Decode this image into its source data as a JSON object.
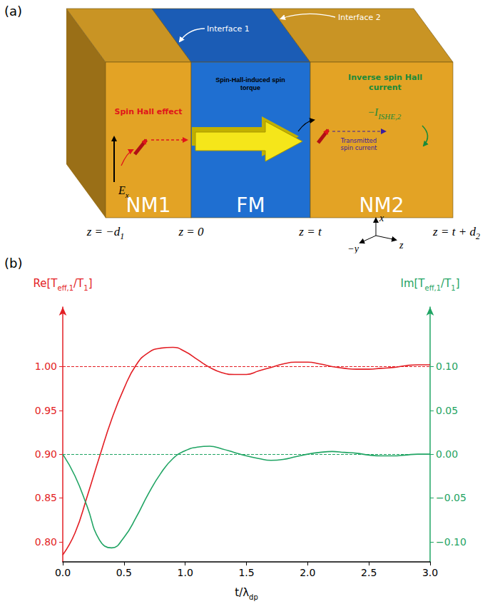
{
  "diagram": {
    "label": "(a)",
    "layers": [
      "NM1",
      "FM",
      "NM2"
    ],
    "interfaces": [
      "Interface 1",
      "Interface 2"
    ],
    "annotations": {
      "spin_hall": "Spin Hall effect",
      "field": [
        "E",
        {
          "sub": "x"
        }
      ],
      "torque": "Spin-Hall-induced spin torque",
      "ishe": "Inverse spin Hall current",
      "ishe_current": [
        "−I",
        {
          "sub": "ISHE,2"
        }
      ],
      "transmitted": "Transmitted spin current"
    },
    "positions": [
      [
        "z = −d",
        {
          "sub": "1"
        }
      ],
      "z = 0",
      "z = t",
      [
        "z = t + d",
        {
          "sub": "2"
        }
      ]
    ],
    "axes": [
      "x",
      "−y",
      "z"
    ]
  },
  "chart_data": {
    "type": "line",
    "panel_label": "(b)",
    "xlabel": [
      "t/λ",
      {
        "sub": "dp"
      }
    ],
    "ylabel": [
      "Re[T",
      {
        "sub": "eff,1"
      },
      "/T",
      {
        "sub": "1"
      },
      "]"
    ],
    "y2label": [
      "Im[T",
      {
        "sub": "eff,1"
      },
      "/T",
      {
        "sub": "1"
      },
      "]"
    ],
    "x": [
      0,
      0.1,
      0.2,
      0.3,
      0.4,
      0.5,
      0.6,
      0.7,
      0.8,
      0.9,
      1.0,
      1.1,
      1.2,
      1.3,
      1.4,
      1.5,
      1.6,
      1.7,
      1.8,
      1.9,
      2.0,
      2.1,
      2.2,
      2.3,
      2.4,
      2.5,
      2.6,
      2.7,
      2.8,
      2.9,
      3.0
    ],
    "xlim": [
      0,
      3
    ],
    "xticks": [
      {
        "value": 0,
        "label": "0.0"
      },
      0.5,
      {
        "value": 1,
        "label": "1.0"
      },
      1.5,
      {
        "value": 2,
        "label": "2.0"
      },
      2.5,
      {
        "value": 3,
        "label": "3.0"
      }
    ],
    "ylim": [
      0.777,
      1.068
    ],
    "yticks": [
      {
        "value": 0.8,
        "label": "0.80"
      },
      0.85,
      {
        "value": 0.9,
        "label": "0.90"
      },
      0.95,
      {
        "value": 1,
        "label": "1.00"
      }
    ],
    "y2lim": [
      -0.123,
      0.168
    ],
    "y2ticks": [
      {
        "value": -0.1,
        "label": "−0.10"
      },
      {
        "value": -0.05,
        "label": "−0.05"
      },
      {
        "value": 0,
        "label": "0.00"
      },
      0.05,
      {
        "value": 0.1,
        "label": "0.10"
      }
    ],
    "grid": false,
    "series": [
      {
        "color": "#e31e24",
        "reference_line": 1.0,
        "values": [
          0.785,
          0.81,
          0.852,
          0.897,
          0.94,
          0.975,
          1.002,
          1.016,
          1.021,
          1.022,
          1.017,
          1.008,
          0.999,
          0.993,
          0.991,
          0.991,
          0.995,
          0.999,
          1.003,
          1.005,
          1.005,
          1.003,
          1.0,
          0.998,
          0.997,
          0.997,
          0.998,
          0.999,
          1.001,
          1.002,
          1.002
        ]
      },
      {
        "color": "#1fa463",
        "axis": "y2",
        "reference_line": 0.0,
        "values": [
          0.0,
          -0.025,
          -0.06,
          -0.098,
          -0.107,
          -0.095,
          -0.072,
          -0.045,
          -0.022,
          -0.005,
          0.004,
          0.008,
          0.009,
          0.006,
          0.002,
          -0.002,
          -0.005,
          -0.007,
          -0.006,
          -0.003,
          0.0,
          0.002,
          0.003,
          0.002,
          0.001,
          -0.001,
          -0.002,
          -0.002,
          -0.001,
          0.0,
          0.0
        ]
      }
    ]
  }
}
